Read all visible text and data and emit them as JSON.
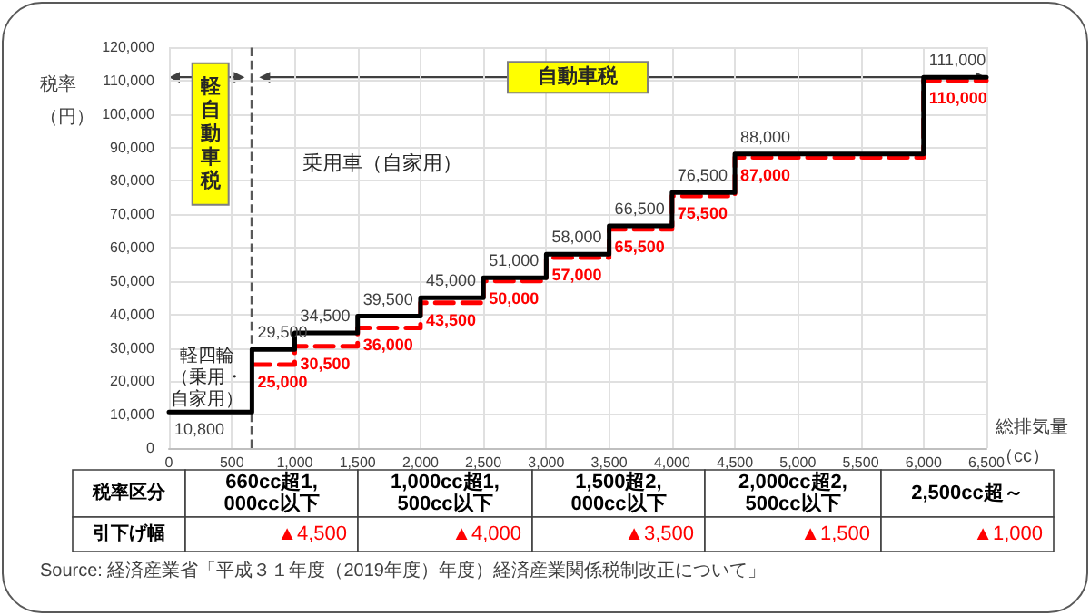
{
  "chart_data": {
    "type": "step",
    "xlabel": "総排気量（cc）",
    "ylabel": "税率（円）",
    "xlim": [
      0,
      6500
    ],
    "xticks": [
      0,
      500,
      {
        "value": 1000,
        "label": "1,000"
      },
      {
        "value": 1500,
        "label": "1,500"
      },
      {
        "value": 2000,
        "label": "2,000"
      },
      {
        "value": 2500,
        "label": "2,500"
      },
      {
        "value": 3000,
        "label": "3,000"
      },
      {
        "value": 3500,
        "label": "3,500"
      },
      {
        "value": 4000,
        "label": "4,000"
      },
      {
        "value": 4500,
        "label": "4,500"
      },
      {
        "value": 5000,
        "label": "5,000"
      },
      {
        "value": 5500,
        "label": "5,500"
      },
      {
        "value": 6000,
        "label": "6,000"
      },
      {
        "value": 6500,
        "label": "6,500"
      }
    ],
    "ylim": [
      0,
      120000
    ],
    "yticks": [
      0,
      {
        "value": 10000,
        "label": "10,000"
      },
      {
        "value": 20000,
        "label": "20,000"
      },
      {
        "value": 30000,
        "label": "30,000"
      },
      {
        "value": 40000,
        "label": "40,000"
      },
      {
        "value": 50000,
        "label": "50,000"
      },
      {
        "value": 60000,
        "label": "60,000"
      },
      {
        "value": 70000,
        "label": "70,000"
      },
      {
        "value": 80000,
        "label": "80,000"
      },
      {
        "value": 90000,
        "label": "90,000"
      },
      {
        "value": 100000,
        "label": "100,000"
      },
      {
        "value": 110000,
        "label": "110,000"
      },
      {
        "value": 120000,
        "label": "120,000"
      }
    ],
    "grid": true,
    "marker": "none",
    "series": [
      {
        "color": "#000000",
        "line_style": "solid",
        "x": [
          0,
          660,
          1000,
          1500,
          2000,
          2500,
          3000,
          3500,
          4000,
          4500,
          6000,
          6500
        ],
        "values": [
          10800,
          29500,
          34500,
          39500,
          45000,
          51000,
          58000,
          66500,
          76500,
          88000,
          111000,
          111000
        ],
        "value_labels": [
          "10,800",
          "29,500",
          "34,500",
          "39,500",
          "45,000",
          "51,000",
          "58,000",
          "66,500",
          "76,500",
          "88,000",
          "111,000",
          null
        ]
      },
      {
        "color": "#ff0000",
        "line_style": "dashed",
        "x": [
          660,
          1000,
          1500,
          2000,
          2500,
          3000,
          3500,
          4000,
          4500,
          6000,
          6500
        ],
        "values": [
          25000,
          30500,
          36000,
          43500,
          50000,
          57000,
          65500,
          75500,
          87000,
          110000,
          110000
        ],
        "value_labels": [
          "25,000",
          "30,500",
          "36,000",
          "43,500",
          "50,000",
          "57,000",
          "65,500",
          "75,500",
          "87,000",
          "110,000",
          null
        ]
      }
    ],
    "ref_lines": [
      {
        "axis": "x",
        "value": 660,
        "label": null,
        "color": "#595959",
        "line_style": "dashed"
      }
    ],
    "annotations": [
      "軽自動車税",
      "自動車税",
      "乗用車（自家用）",
      "軽四輪（乗用・自家用）",
      "税率区分",
      "660cc超1,000cc以下",
      "1,000cc超1,500cc以下",
      "1,500超2,000cc以下",
      "2,000cc超2,500cc以下",
      "2,500cc超～",
      "引下げ幅",
      "▲4,500",
      "▲4,000",
      "▲3,500",
      "▲1,500",
      "▲1,000",
      "Source: 経済産業省「平成３１年度（2019年度）年度）経済産業関係税制改正について」"
    ]
  }
}
